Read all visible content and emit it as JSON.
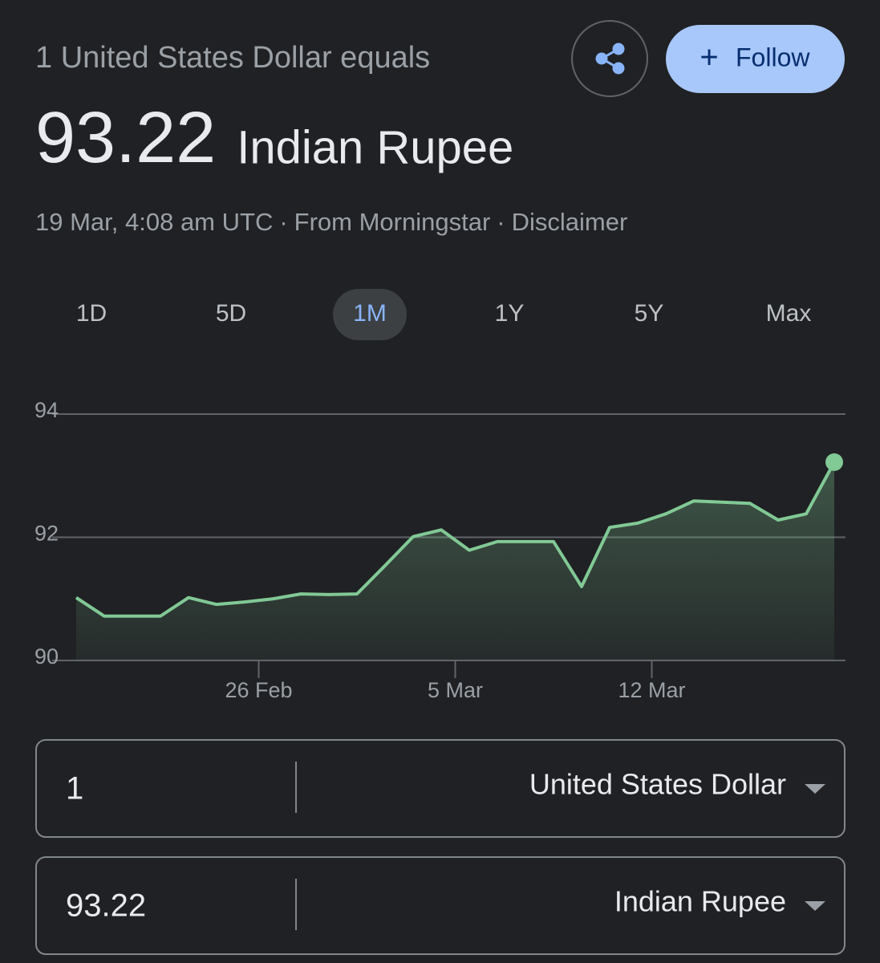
{
  "header": {
    "subtitle": "1 United States Dollar equals",
    "value": "93.22",
    "currency": "Indian Rupee",
    "meta": [
      "19 Mar, 4:08 am UTC",
      "From Morningstar",
      "Disclaimer"
    ],
    "separator": "·"
  },
  "follow_button": {
    "icon": "+",
    "label": "Follow"
  },
  "tabs": {
    "items": [
      "1D",
      "5D",
      "1M",
      "1Y",
      "5Y",
      "Max"
    ],
    "selected": 2
  },
  "chart_data": {
    "type": "line",
    "x": [
      19.5,
      20.5,
      21.5,
      22.5,
      23.5,
      24.5,
      25.5,
      26.5,
      27.5,
      28.5,
      29.5,
      30.5,
      31.5,
      32.5,
      33.5,
      34.5,
      35.5,
      36.5,
      37.5,
      38.5,
      39.5,
      40.5,
      41.5,
      42.5,
      43.5,
      44.5,
      45.5,
      46.5
    ],
    "values": [
      91.02,
      90.72,
      90.72,
      90.72,
      91.02,
      90.91,
      90.95,
      91.0,
      91.08,
      91.07,
      91.08,
      91.54,
      92.01,
      92.12,
      91.79,
      91.93,
      91.93,
      91.93,
      91.2,
      92.16,
      92.23,
      92.38,
      92.59,
      92.57,
      92.55,
      92.28,
      92.38,
      93.22
    ],
    "color": "#81c995",
    "area": true,
    "xlim": [
      19.5,
      46.5
    ],
    "xticks": [
      {
        "value": 26,
        "label": "26 Feb"
      },
      {
        "value": 33,
        "label": "5 Mar"
      },
      {
        "value": 40,
        "label": "12 Mar"
      }
    ],
    "ylim": [
      90,
      94
    ],
    "yticks": [
      90,
      92,
      94
    ],
    "grid": true
  },
  "converter": {
    "rows": [
      {
        "amount": "1",
        "currency": "United States Dollar"
      },
      {
        "amount": "93.22",
        "currency": "Indian Rupee"
      }
    ]
  }
}
